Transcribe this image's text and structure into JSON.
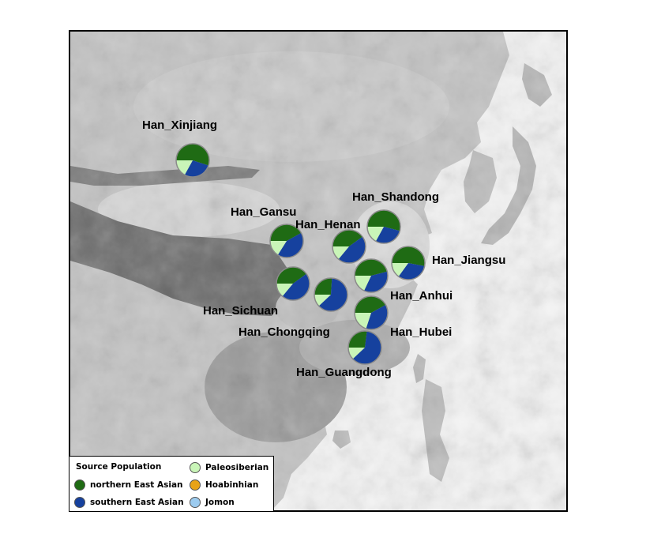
{
  "legend": {
    "title": "Source Population",
    "items": [
      {
        "label": "northern East Asian",
        "color": "#1f6b14"
      },
      {
        "label": "southern East Asian",
        "color": "#16419e"
      },
      {
        "label": "Paleosiberian",
        "color": "#c9f5b8"
      },
      {
        "label": "Hoabinhian",
        "color": "#e8a317"
      },
      {
        "label": "Jomon",
        "color": "#9ccbef"
      }
    ]
  },
  "populations": [
    {
      "name": "Han_Xinjiang",
      "northern_east_asian": 0.55,
      "southern_east_asian": 0.28,
      "paleosiberian": 0.17
    },
    {
      "name": "Han_Gansu",
      "northern_east_asian": 0.42,
      "southern_east_asian": 0.42,
      "paleosiberian": 0.16
    },
    {
      "name": "Han_Henan",
      "northern_east_asian": 0.4,
      "southern_east_asian": 0.46,
      "paleosiberian": 0.14
    },
    {
      "name": "Han_Shandong",
      "northern_east_asian": 0.54,
      "southern_east_asian": 0.29,
      "paleosiberian": 0.17
    },
    {
      "name": "Han_Jiangsu",
      "northern_east_asian": 0.53,
      "southern_east_asian": 0.32,
      "paleosiberian": 0.15
    },
    {
      "name": "Han_Sichuan",
      "northern_east_asian": 0.4,
      "southern_east_asian": 0.46,
      "paleosiberian": 0.14
    },
    {
      "name": "Han_Chongqing",
      "northern_east_asian": 0.26,
      "southern_east_asian": 0.62,
      "paleosiberian": 0.12
    },
    {
      "name": "Han_Anhui",
      "northern_east_asian": 0.46,
      "southern_east_asian": 0.36,
      "paleosiberian": 0.18
    },
    {
      "name": "Han_Hubei",
      "northern_east_asian": 0.42,
      "southern_east_asian": 0.38,
      "paleosiberian": 0.2
    },
    {
      "name": "Han_Guangdong",
      "northern_east_asian": 0.27,
      "southern_east_asian": 0.61,
      "paleosiberian": 0.12
    }
  ]
}
